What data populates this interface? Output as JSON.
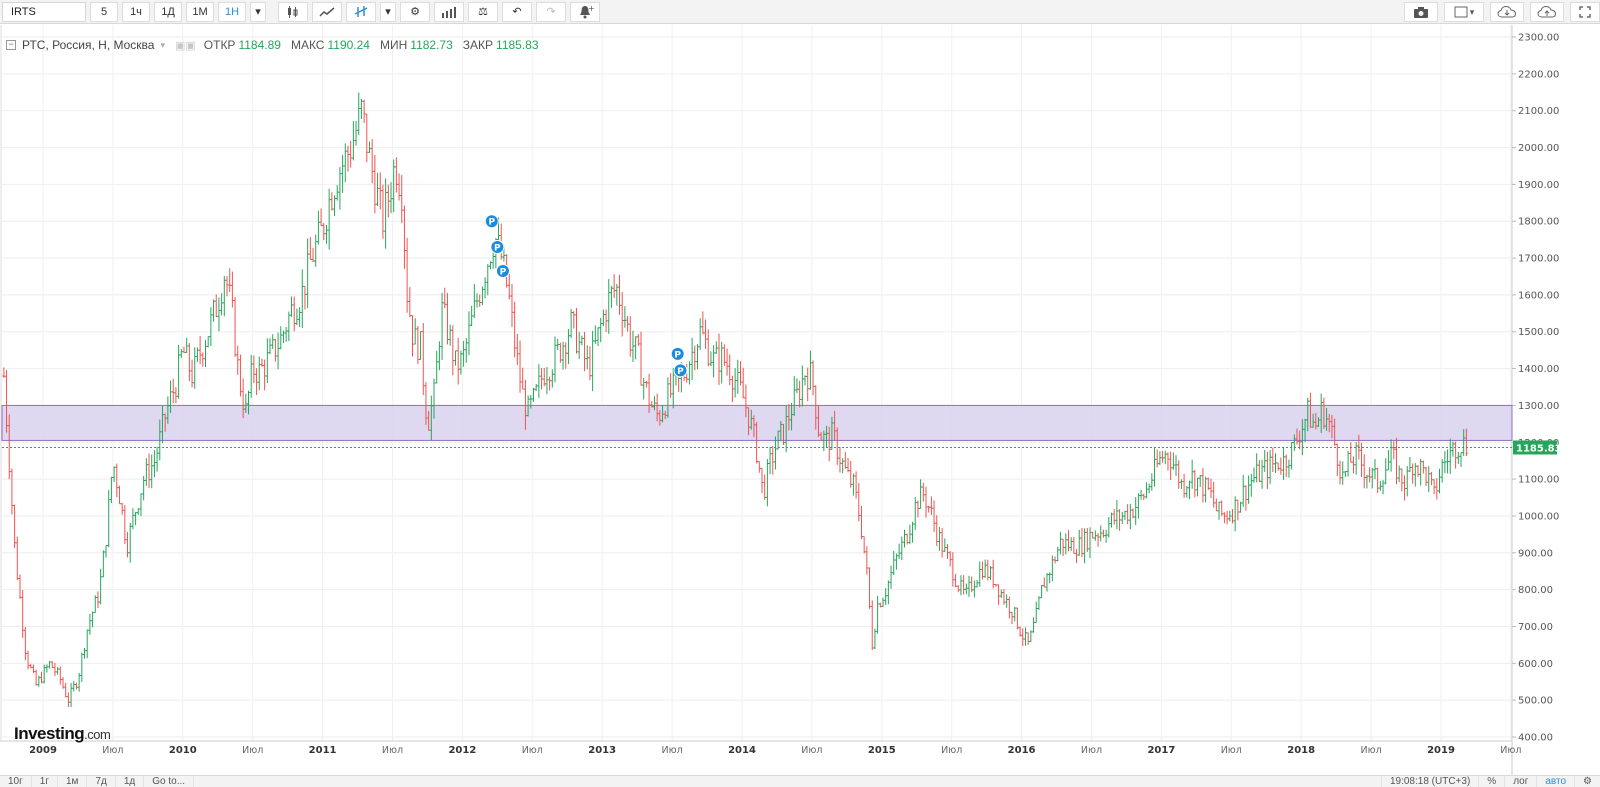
{
  "toolbar": {
    "symbol": "IRTS",
    "intervals": [
      "5",
      "1ч",
      "1Д",
      "1М",
      "1Н"
    ],
    "active_interval": "1Н",
    "icons": [
      "candles-icon",
      "line-chart-icon",
      "bar-type-icon",
      "settings-icon",
      "indicators-icon",
      "compare-icon",
      "undo-icon",
      "redo-icon",
      "alert-icon"
    ],
    "right_icons": [
      "camera-icon",
      "layout-icon",
      "cloud-download-icon",
      "cloud-upload-icon",
      "fullscreen-icon"
    ]
  },
  "legend": {
    "name": "РТС, Россия, Н, Москва",
    "open_label": "ОТКР",
    "open_value": "1184.89",
    "high_label": "МАКС",
    "high_value": "1190.24",
    "low_label": "МИН",
    "low_value": "1182.73",
    "close_label": "ЗАКР",
    "close_value": "1185.83"
  },
  "price_badge": "1185.83",
  "bottom": {
    "ranges": [
      "10г",
      "1г",
      "1м",
      "7д",
      "1д",
      "Go to..."
    ],
    "clock": "19:08:18 (UTC+3)",
    "percent": "%",
    "log": "лог",
    "auto": "авто"
  },
  "logo": {
    "main": "Investing",
    "suffix": ".com"
  },
  "colors": {
    "up": "#26a65b",
    "down": "#ef5350",
    "zone_fill": "#d8d1ef",
    "zone_border": "#8e6fc2",
    "badge": "#26a65b",
    "marker": "#1a8ce0"
  },
  "chart_data": {
    "type": "line",
    "title": "РТС, Россия, Н, Москва",
    "ylim": [
      400,
      2300
    ],
    "y_ticks": [
      "400.00",
      "500.00",
      "600.00",
      "700.00",
      "800.00",
      "900.00",
      "1000.00",
      "1100.00",
      "1200.00",
      "1300.00",
      "1400.00",
      "1500.00",
      "1600.00",
      "1700.00",
      "1800.00",
      "1900.00",
      "2000.00",
      "2100.00",
      "2200.00",
      "2300.00"
    ],
    "x_ticks": [
      {
        "label": "2009",
        "t": 2009.0
      },
      {
        "label": "Июл",
        "t": 2009.5
      },
      {
        "label": "2010",
        "t": 2010.0
      },
      {
        "label": "Июл",
        "t": 2010.5
      },
      {
        "label": "2011",
        "t": 2011.0
      },
      {
        "label": "Июл",
        "t": 2011.5
      },
      {
        "label": "2012",
        "t": 2012.0
      },
      {
        "label": "Июл",
        "t": 2012.5
      },
      {
        "label": "2013",
        "t": 2013.0
      },
      {
        "label": "Июл",
        "t": 2013.5
      },
      {
        "label": "2014",
        "t": 2014.0
      },
      {
        "label": "Июл",
        "t": 2014.5
      },
      {
        "label": "2015",
        "t": 2015.0
      },
      {
        "label": "Июл",
        "t": 2015.5
      },
      {
        "label": "2016",
        "t": 2016.0
      },
      {
        "label": "Июл",
        "t": 2016.5
      },
      {
        "label": "2017",
        "t": 2017.0
      },
      {
        "label": "Июл",
        "t": 2017.5
      },
      {
        "label": "2018",
        "t": 2018.0
      },
      {
        "label": "Июл",
        "t": 2018.5
      },
      {
        "label": "2019",
        "t": 2019.0
      },
      {
        "label": "Июл",
        "t": 2019.5
      }
    ],
    "x_range": [
      2008.72,
      2019.5
    ],
    "series": [
      {
        "values": [
          [
            2008.72,
            1380
          ],
          [
            2008.8,
            900
          ],
          [
            2008.88,
            620
          ],
          [
            2008.95,
            540
          ],
          [
            2009.05,
            600
          ],
          [
            2009.12,
            560
          ],
          [
            2009.18,
            500
          ],
          [
            2009.25,
            560
          ],
          [
            2009.32,
            700
          ],
          [
            2009.4,
            790
          ],
          [
            2009.45,
            940
          ],
          [
            2009.5,
            1150
          ],
          [
            2009.55,
            1050
          ],
          [
            2009.6,
            920
          ],
          [
            2009.65,
            1000
          ],
          [
            2009.72,
            1100
          ],
          [
            2009.8,
            1150
          ],
          [
            2009.88,
            1280
          ],
          [
            2009.95,
            1360
          ],
          [
            2010.0,
            1450
          ],
          [
            2010.07,
            1380
          ],
          [
            2010.12,
            1440
          ],
          [
            2010.18,
            1500
          ],
          [
            2010.25,
            1580
          ],
          [
            2010.3,
            1660
          ],
          [
            2010.35,
            1560
          ],
          [
            2010.4,
            1380
          ],
          [
            2010.45,
            1280
          ],
          [
            2010.5,
            1400
          ],
          [
            2010.55,
            1390
          ],
          [
            2010.62,
            1430
          ],
          [
            2010.7,
            1480
          ],
          [
            2010.78,
            1560
          ],
          [
            2010.85,
            1600
          ],
          [
            2010.92,
            1700
          ],
          [
            2011.0,
            1780
          ],
          [
            2011.05,
            1860
          ],
          [
            2011.1,
            1920
          ],
          [
            2011.15,
            1960
          ],
          [
            2011.2,
            2000
          ],
          [
            2011.25,
            2060
          ],
          [
            2011.28,
            2100
          ],
          [
            2011.33,
            1980
          ],
          [
            2011.38,
            1890
          ],
          [
            2011.43,
            1800
          ],
          [
            2011.48,
            1880
          ],
          [
            2011.52,
            1960
          ],
          [
            2011.57,
            1880
          ],
          [
            2011.6,
            1620
          ],
          [
            2011.65,
            1480
          ],
          [
            2011.7,
            1460
          ],
          [
            2011.75,
            1250
          ],
          [
            2011.8,
            1330
          ],
          [
            2011.85,
            1560
          ],
          [
            2011.9,
            1500
          ],
          [
            2011.95,
            1410
          ],
          [
            2012.0,
            1420
          ],
          [
            2012.05,
            1500
          ],
          [
            2012.1,
            1580
          ],
          [
            2012.15,
            1650
          ],
          [
            2012.2,
            1720
          ],
          [
            2012.23,
            1760
          ],
          [
            2012.28,
            1700
          ],
          [
            2012.33,
            1600
          ],
          [
            2012.38,
            1450
          ],
          [
            2012.43,
            1330
          ],
          [
            2012.47,
            1280
          ],
          [
            2012.52,
            1320
          ],
          [
            2012.58,
            1390
          ],
          [
            2012.65,
            1420
          ],
          [
            2012.72,
            1470
          ],
          [
            2012.78,
            1520
          ],
          [
            2012.85,
            1450
          ],
          [
            2012.9,
            1400
          ],
          [
            2012.95,
            1460
          ],
          [
            2013.0,
            1530
          ],
          [
            2013.05,
            1590
          ],
          [
            2013.1,
            1620
          ],
          [
            2013.15,
            1560
          ],
          [
            2013.2,
            1480
          ],
          [
            2013.25,
            1440
          ],
          [
            2013.3,
            1360
          ],
          [
            2013.35,
            1300
          ],
          [
            2013.4,
            1270
          ],
          [
            2013.45,
            1310
          ],
          [
            2013.5,
            1340
          ],
          [
            2013.55,
            1360
          ],
          [
            2013.6,
            1400
          ],
          [
            2013.65,
            1450
          ],
          [
            2013.7,
            1500
          ],
          [
            2013.75,
            1460
          ],
          [
            2013.8,
            1420
          ],
          [
            2013.85,
            1430
          ],
          [
            2013.9,
            1410
          ],
          [
            2013.95,
            1370
          ],
          [
            2014.0,
            1330
          ],
          [
            2014.05,
            1270
          ],
          [
            2014.1,
            1190
          ],
          [
            2014.15,
            1060
          ],
          [
            2014.2,
            1140
          ],
          [
            2014.25,
            1200
          ],
          [
            2014.3,
            1230
          ],
          [
            2014.35,
            1290
          ],
          [
            2014.4,
            1330
          ],
          [
            2014.45,
            1390
          ],
          [
            2014.5,
            1380
          ],
          [
            2014.55,
            1230
          ],
          [
            2014.6,
            1200
          ],
          [
            2014.65,
            1220
          ],
          [
            2014.7,
            1160
          ],
          [
            2014.75,
            1110
          ],
          [
            2014.8,
            1080
          ],
          [
            2014.85,
            980
          ],
          [
            2014.9,
            820
          ],
          [
            2014.93,
            650
          ],
          [
            2014.97,
            760
          ],
          [
            2015.03,
            800
          ],
          [
            2015.1,
            880
          ],
          [
            2015.18,
            950
          ],
          [
            2015.25,
            1040
          ],
          [
            2015.3,
            1060
          ],
          [
            2015.35,
            1010
          ],
          [
            2015.4,
            950
          ],
          [
            2015.45,
            900
          ],
          [
            2015.5,
            860
          ],
          [
            2015.55,
            810
          ],
          [
            2015.6,
            780
          ],
          [
            2015.65,
            820
          ],
          [
            2015.72,
            860
          ],
          [
            2015.8,
            830
          ],
          [
            2015.87,
            780
          ],
          [
            2015.94,
            740
          ],
          [
            2016.0,
            680
          ],
          [
            2016.05,
            650
          ],
          [
            2016.1,
            720
          ],
          [
            2016.15,
            810
          ],
          [
            2016.22,
            870
          ],
          [
            2016.28,
            930
          ],
          [
            2016.35,
            920
          ],
          [
            2016.42,
            920
          ],
          [
            2016.5,
            950
          ],
          [
            2016.58,
            960
          ],
          [
            2016.65,
            990
          ],
          [
            2016.72,
            1000
          ],
          [
            2016.8,
            1020
          ],
          [
            2016.88,
            1060
          ],
          [
            2016.95,
            1120
          ],
          [
            2017.0,
            1160
          ],
          [
            2017.05,
            1170
          ],
          [
            2017.1,
            1130
          ],
          [
            2017.15,
            1080
          ],
          [
            2017.2,
            1110
          ],
          [
            2017.25,
            1100
          ],
          [
            2017.3,
            1080
          ],
          [
            2017.35,
            1060
          ],
          [
            2017.4,
            1010
          ],
          [
            2017.45,
            1000
          ],
          [
            2017.52,
            1020
          ],
          [
            2017.58,
            1060
          ],
          [
            2017.65,
            1100
          ],
          [
            2017.72,
            1120
          ],
          [
            2017.8,
            1140
          ],
          [
            2017.88,
            1150
          ],
          [
            2017.95,
            1190
          ],
          [
            2018.0,
            1240
          ],
          [
            2018.05,
            1280
          ],
          [
            2018.1,
            1240
          ],
          [
            2018.15,
            1290
          ],
          [
            2018.2,
            1250
          ],
          [
            2018.25,
            1180
          ],
          [
            2018.3,
            1100
          ],
          [
            2018.35,
            1150
          ],
          [
            2018.4,
            1160
          ],
          [
            2018.45,
            1130
          ],
          [
            2018.5,
            1110
          ],
          [
            2018.55,
            1090
          ],
          [
            2018.6,
            1130
          ],
          [
            2018.65,
            1160
          ],
          [
            2018.7,
            1110
          ],
          [
            2018.75,
            1090
          ],
          [
            2018.8,
            1150
          ],
          [
            2018.85,
            1130
          ],
          [
            2018.9,
            1110
          ],
          [
            2018.95,
            1050
          ],
          [
            2019.0,
            1130
          ],
          [
            2019.05,
            1160
          ],
          [
            2019.1,
            1190
          ],
          [
            2019.15,
            1200
          ],
          [
            2019.2,
            1186
          ]
        ]
      }
    ],
    "zone": {
      "from": 1205,
      "to": 1300
    },
    "current_price": 1185.83,
    "markers": [
      {
        "t": 2012.21,
        "y": 1800,
        "label": "P"
      },
      {
        "t": 2012.25,
        "y": 1730,
        "label": "P"
      },
      {
        "t": 2012.29,
        "y": 1665,
        "label": "P"
      },
      {
        "t": 2013.54,
        "y": 1440,
        "label": "P"
      },
      {
        "t": 2013.56,
        "y": 1395,
        "label": "P"
      }
    ]
  }
}
